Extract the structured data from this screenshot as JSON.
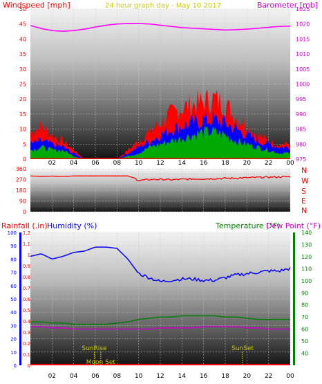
{
  "header": {
    "left_label": "Windspeed [mph]",
    "center_label": "24 hour graph day - May 10 2017",
    "right_label": "Barometer [mb]"
  },
  "colors": {
    "wind": "#ff0000",
    "gust_fill": "#ff0000",
    "speed_fill": "#0000ff",
    "avg_fill": "#00aa00",
    "barometer": "#ff00ff",
    "direction": "#ff0000",
    "rain_axis": "#ff0000",
    "humidity": "#0000ff",
    "temperature": "#008000",
    "dewpoint": "#cc00cc",
    "sun_moon": "#cccc00"
  },
  "chart_data": [
    {
      "name": "wind-barometer",
      "type": "area",
      "left_axis": {
        "label": "Windspeed [mph]",
        "ylim": [
          0,
          50
        ],
        "ticks": [
          0,
          5,
          10,
          15,
          20,
          25,
          30,
          35,
          40,
          45,
          50
        ]
      },
      "right_axis": {
        "label": "Barometer [mb]",
        "ylim": [
          975,
          1025
        ],
        "ticks": [
          975,
          980,
          985,
          990,
          995,
          1000,
          1005,
          1010,
          1015,
          1020,
          1025
        ]
      },
      "x_ticks": [
        "02",
        "04",
        "06",
        "08",
        "10",
        "12",
        "14",
        "16",
        "18",
        "20",
        "22",
        "00"
      ],
      "hours": [
        0,
        1,
        2,
        3,
        4,
        5,
        6,
        7,
        8,
        9,
        10,
        11,
        12,
        13,
        14,
        15,
        16,
        17,
        18,
        19,
        20,
        21,
        22,
        23,
        24
      ],
      "series": [
        {
          "name": "Windspeed",
          "values": [
            9,
            11,
            8,
            6,
            3,
            0,
            0,
            0,
            0,
            3,
            6,
            9,
            12,
            15,
            17,
            18,
            19,
            20,
            18,
            14,
            11,
            8,
            6,
            5,
            5
          ]
        },
        {
          "values": [
            5,
            6,
            5,
            4,
            2,
            0,
            0,
            0,
            0,
            2,
            4,
            6,
            8,
            10,
            11,
            12,
            13,
            13,
            12,
            10,
            8,
            6,
            5,
            4,
            4
          ]
        },
        {
          "values": [
            3,
            4,
            3,
            3,
            1,
            0,
            0,
            0,
            0,
            1,
            2,
            4,
            5,
            6,
            7,
            8,
            9,
            9,
            8,
            6,
            5,
            4,
            3,
            2,
            2
          ]
        },
        {
          "name": "Barometer",
          "values": [
            1019.5,
            1018.5,
            1017.8,
            1017.6,
            1017.8,
            1018.3,
            1019.0,
            1019.6,
            1020.0,
            1020.2,
            1020.2,
            1020.0,
            1019.6,
            1019.2,
            1018.8,
            1018.6,
            1018.4,
            1018.2,
            1018.0,
            1018.1,
            1018.3,
            1018.6,
            1018.9,
            1019.2,
            1019.3
          ]
        }
      ]
    },
    {
      "name": "wind-direction",
      "type": "line",
      "left_axis": {
        "ylim": [
          0,
          360
        ],
        "ticks": [
          0,
          90,
          180,
          270,
          360
        ],
        "tick_labels": [
          "0",
          "90",
          "180",
          "270",
          "360"
        ]
      },
      "extra_ticks": [
        45,
        135,
        225,
        315
      ],
      "compass": [
        "N",
        "W",
        "S",
        "E",
        "N"
      ],
      "hours": [
        0,
        1,
        2,
        3,
        4,
        5,
        6,
        7,
        8,
        9,
        9.5,
        10,
        11,
        12,
        13,
        14,
        15,
        16,
        17,
        18,
        19,
        20,
        21,
        22,
        23,
        24
      ],
      "series": [
        {
          "values": [
            300,
            297,
            299,
            296,
            300,
            300,
            300,
            300,
            300,
            300,
            285,
            262,
            270,
            272,
            268,
            272,
            275,
            276,
            278,
            280,
            282,
            285,
            288,
            290,
            292,
            294
          ]
        }
      ]
    },
    {
      "name": "humidity-temperature",
      "type": "line",
      "headers": {
        "rainfall": "Rainfall (.in)",
        "humidity": "Humidity (%)",
        "temperature": "Temperature (°F)",
        "dewpoint": "Dew Point (°F)"
      },
      "rain_axis": {
        "ylim": [
          0,
          1.2
        ],
        "ticks": [
          0,
          0.1,
          0.2,
          0.3,
          0.4,
          0.5,
          0.6,
          0.7,
          0.8,
          0.9,
          1,
          1.1,
          1.2
        ]
      },
      "humidity_axis": {
        "ylim": [
          0,
          100
        ],
        "ticks": [
          0,
          10,
          20,
          30,
          40,
          50,
          60,
          70,
          80,
          90,
          100
        ]
      },
      "temp_axis": {
        "ylim": [
          30,
          140
        ],
        "ticks": [
          40,
          50,
          60,
          70,
          80,
          90,
          100,
          110,
          120,
          130,
          140
        ]
      },
      "x_ticks": [
        "02",
        "04",
        "06",
        "08",
        "10",
        "12",
        "14",
        "16",
        "18",
        "20",
        "22",
        "00"
      ],
      "hours": [
        0,
        1,
        2,
        3,
        4,
        5,
        6,
        7,
        8,
        9,
        10,
        11,
        12,
        13,
        14,
        15,
        16,
        17,
        18,
        19,
        20,
        21,
        22,
        23,
        24
      ],
      "series": [
        {
          "name": "Humidity",
          "values": [
            82,
            84,
            80,
            82,
            85,
            86,
            89,
            89,
            88,
            80,
            69,
            66,
            63,
            64,
            65,
            65,
            64,
            64,
            66,
            68,
            69,
            70,
            71,
            71,
            73
          ]
        },
        {
          "name": "Temperature",
          "values": [
            66,
            66,
            65,
            65,
            64,
            64,
            64,
            64,
            65,
            66,
            68,
            69,
            70,
            70,
            71,
            71,
            71,
            71,
            70,
            70,
            69,
            68,
            68,
            68,
            68
          ]
        },
        {
          "name": "Dew Point",
          "values": [
            62,
            62,
            61,
            61,
            60,
            60,
            60,
            60,
            60,
            60,
            60,
            60,
            61,
            61,
            61,
            61,
            62,
            62,
            62,
            62,
            61,
            61,
            60,
            60,
            60
          ]
        }
      ],
      "events": [
        {
          "label": "SunRise",
          "hour": 5.9
        },
        {
          "label": "Moon Set",
          "hour": 6.5
        },
        {
          "label": "SunSet",
          "hour": 19.6
        }
      ]
    }
  ]
}
